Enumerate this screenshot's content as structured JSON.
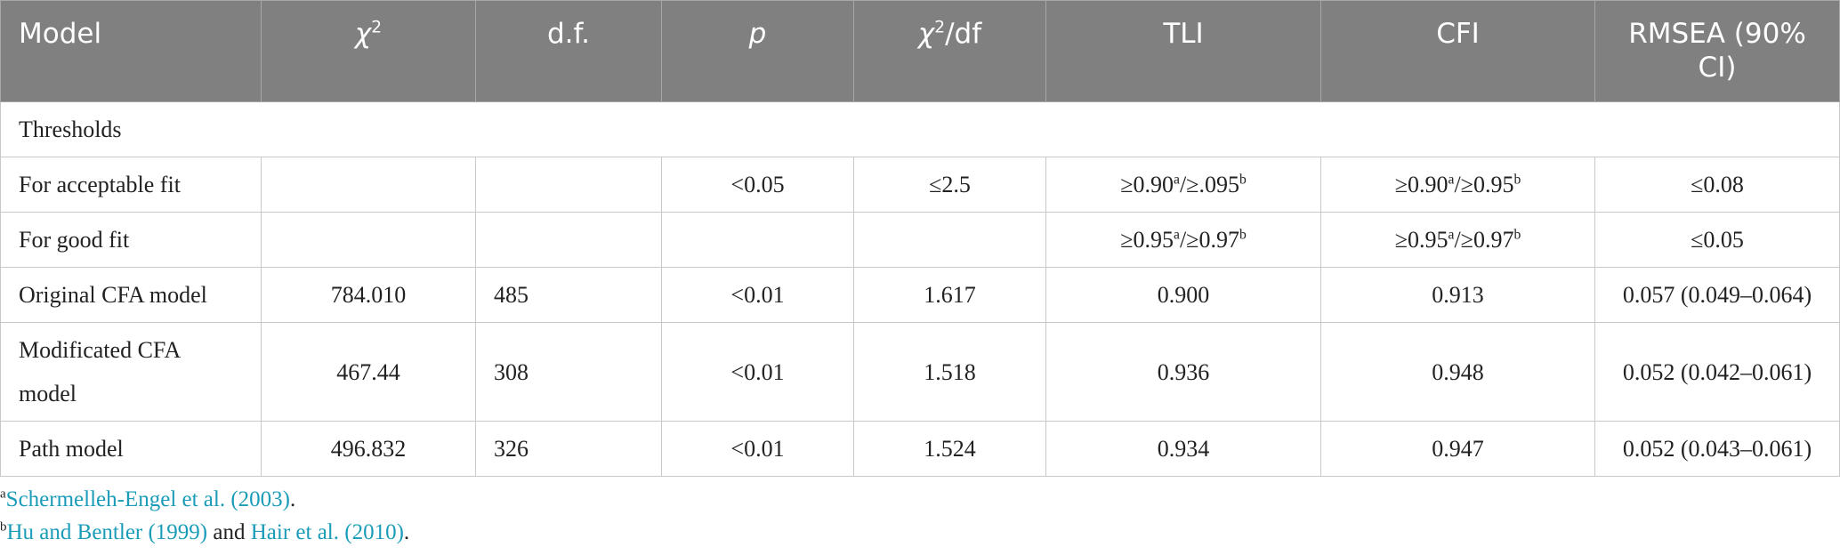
{
  "table": {
    "header": [
      "Model",
      [
        {
          "i": "χ"
        },
        {
          "sup": "2"
        }
      ],
      "d.f.",
      [
        {
          "i": "p"
        }
      ],
      [
        {
          "i": "χ"
        },
        {
          "sup": "2"
        },
        {
          "t": "/df"
        }
      ],
      "TLI",
      "CFI",
      "RMSEA (90% CI)"
    ],
    "rows": [
      [
        "Thresholds"
      ],
      [
        "For acceptable fit",
        null,
        null,
        "<0.05",
        "≤2.5",
        [
          {
            "t": "≥0.90"
          },
          {
            "sup": "a"
          },
          {
            "t": "/≥.095"
          },
          {
            "sup": "b"
          }
        ],
        [
          {
            "t": "≥0.90"
          },
          {
            "sup": "a"
          },
          {
            "t": "/≥0.95"
          },
          {
            "sup": "b"
          }
        ],
        "≤0.08"
      ],
      [
        "For good fit",
        null,
        null,
        null,
        null,
        [
          {
            "t": "≥0.95"
          },
          {
            "sup": "a"
          },
          {
            "t": "/≥0.97"
          },
          {
            "sup": "b"
          }
        ],
        [
          {
            "t": "≥0.95"
          },
          {
            "sup": "a"
          },
          {
            "t": "/≥0.97"
          },
          {
            "sup": "b"
          }
        ],
        "≤0.05"
      ],
      [
        "Original CFA model",
        "784.010",
        "485",
        "<0.01",
        "1.617",
        "0.900",
        "0.913",
        "0.057 (0.049–0.064)"
      ],
      [
        "Modificated CFA model",
        "467.44",
        "308",
        "<0.01",
        "1.518",
        "0.936",
        "0.948",
        "0.052 (0.042–0.061)"
      ],
      [
        "Path model",
        "496.832",
        "326",
        "<0.01",
        "1.524",
        "0.934",
        "0.947",
        "0.052 (0.043–0.061)"
      ]
    ]
  },
  "footnotes": [
    [
      {
        "sup": "a"
      },
      {
        "link": "Schermelleh-Engel et al. (2003)"
      },
      {
        "t": "."
      }
    ],
    [
      {
        "sup": "b"
      },
      {
        "link": "Hu and Bentler (1999)"
      },
      {
        "t": " and "
      },
      {
        "link": "Hair et al. (2010)"
      },
      {
        "t": "."
      }
    ]
  ]
}
